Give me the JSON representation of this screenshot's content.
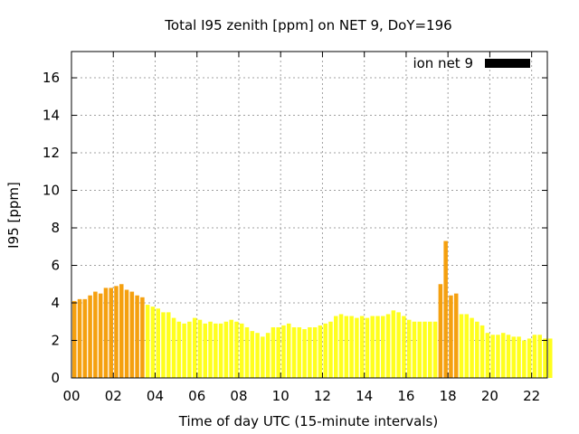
{
  "chart_data": {
    "type": "bar",
    "title": "Total I95 zenith [ppm] on NET 9, DoY=196",
    "xlabel": "Time of day UTC (15-minute intervals)",
    "ylabel": "I95 [ppm]",
    "xlim": [
      0,
      22.75
    ],
    "ylim": [
      0,
      17.4
    ],
    "x_ticks": [
      0,
      2,
      4,
      6,
      8,
      10,
      12,
      14,
      16,
      18,
      20,
      22
    ],
    "x_tick_labels": [
      "00",
      "02",
      "04",
      "06",
      "08",
      "10",
      "12",
      "14",
      "16",
      "18",
      "20",
      "22"
    ],
    "y_ticks": [
      0,
      2,
      4,
      6,
      8,
      10,
      12,
      14,
      16
    ],
    "y_tick_labels": [
      "0",
      "2",
      "4",
      "6",
      "8",
      "10",
      "12",
      "14",
      "16"
    ],
    "grid": true,
    "legend": {
      "position": "top-right",
      "label": "ion net 9",
      "color": "#000000"
    },
    "bar_interval_hours": 0.25,
    "colors": {
      "high": "#f5a00f",
      "low": "#ffff1e"
    },
    "series": [
      {
        "x": [
          0,
          0.25,
          0.5,
          0.75,
          1,
          1.25,
          1.5,
          1.75,
          2,
          2.25,
          2.5,
          2.75,
          3,
          3.25,
          3.5,
          3.75,
          4,
          4.25,
          4.5,
          4.75,
          5,
          5.25,
          5.5,
          5.75,
          6,
          6.25,
          6.5,
          6.75,
          7,
          7.25,
          7.5,
          7.75,
          8,
          8.25,
          8.5,
          8.75,
          9,
          9.25,
          9.5,
          9.75,
          10,
          10.25,
          10.5,
          10.75,
          11,
          11.25,
          11.5,
          11.75,
          12,
          12.25,
          12.5,
          12.75,
          13,
          13.25,
          13.5,
          13.75,
          14,
          14.25,
          14.5,
          14.75,
          15,
          15.25,
          15.5,
          15.75,
          16,
          16.25,
          16.5,
          16.75,
          17,
          17.25,
          17.5,
          17.75,
          18,
          18.25,
          18.5,
          18.75,
          19,
          19.25,
          19.5,
          19.75,
          20,
          20.25,
          20.5,
          20.75,
          21,
          21.25,
          21.5,
          21.75,
          22,
          22.25,
          22.5,
          22.75
        ],
        "values": [
          4.1,
          4.2,
          4.2,
          4.4,
          4.6,
          4.5,
          4.8,
          4.8,
          4.9,
          5.0,
          4.7,
          4.6,
          4.4,
          4.3,
          3.9,
          3.8,
          3.7,
          3.5,
          3.5,
          3.2,
          3.0,
          2.9,
          3.0,
          3.2,
          3.1,
          2.9,
          3.0,
          2.9,
          2.9,
          3.0,
          3.1,
          3.0,
          2.9,
          2.7,
          2.5,
          2.4,
          2.2,
          2.4,
          2.7,
          2.7,
          2.8,
          2.9,
          2.7,
          2.7,
          2.6,
          2.7,
          2.7,
          2.8,
          2.9,
          3.0,
          3.3,
          3.4,
          3.3,
          3.3,
          3.2,
          3.3,
          3.2,
          3.3,
          3.3,
          3.3,
          3.4,
          3.6,
          3.5,
          3.3,
          3.1,
          3.0,
          3.0,
          3.0,
          3.0,
          3.0,
          5.0,
          7.3,
          4.4,
          4.5,
          3.4,
          3.4,
          3.2,
          3.0,
          2.8,
          2.4,
          2.3,
          2.3,
          2.4,
          2.3,
          2.2,
          2.2,
          2.0,
          2.1,
          2.3,
          2.3,
          2.1,
          2.1
        ],
        "levels": [
          "high",
          "high",
          "high",
          "high",
          "high",
          "high",
          "high",
          "high",
          "high",
          "high",
          "high",
          "high",
          "high",
          "high",
          "low",
          "low",
          "low",
          "low",
          "low",
          "low",
          "low",
          "low",
          "low",
          "low",
          "low",
          "low",
          "low",
          "low",
          "low",
          "low",
          "low",
          "low",
          "low",
          "low",
          "low",
          "low",
          "low",
          "low",
          "low",
          "low",
          "low",
          "low",
          "low",
          "low",
          "low",
          "low",
          "low",
          "low",
          "low",
          "low",
          "low",
          "low",
          "low",
          "low",
          "low",
          "low",
          "low",
          "low",
          "low",
          "low",
          "low",
          "low",
          "low",
          "low",
          "low",
          "low",
          "low",
          "low",
          "low",
          "low",
          "high",
          "high",
          "high",
          "high",
          "low",
          "low",
          "low",
          "low",
          "low",
          "low",
          "low",
          "low",
          "low",
          "low",
          "low",
          "low",
          "low",
          "low",
          "low",
          "low",
          "low",
          "low"
        ]
      }
    ]
  }
}
